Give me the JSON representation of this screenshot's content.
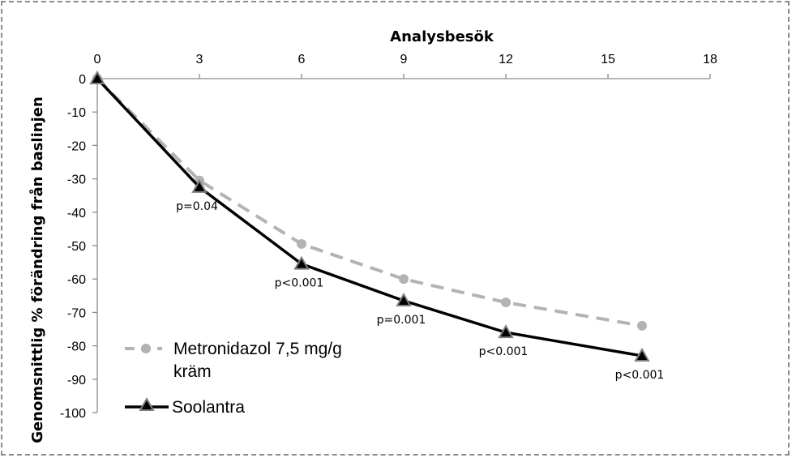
{
  "chart_data": {
    "type": "line",
    "title": "",
    "xlabel": "Analysbesök",
    "ylabel": "Genomsnittlig % förändring från baslinjen",
    "xlim": [
      0,
      18
    ],
    "ylim": [
      -100,
      0
    ],
    "x_ticks": [
      0,
      3,
      6,
      9,
      12,
      15,
      18
    ],
    "y_ticks": [
      0,
      -10,
      -20,
      -30,
      -40,
      -50,
      -60,
      -70,
      -80,
      -90,
      -100
    ],
    "x_axis_position": "top",
    "grid": false,
    "legend_position": "bottom-left",
    "series": [
      {
        "name": "Metronidazol 7,5 mg/g kräm",
        "legend_lines": [
          "Metronidazol 7,5 mg/g",
          "kräm"
        ],
        "x": [
          0,
          3,
          6,
          9,
          12,
          16
        ],
        "values": [
          0,
          -30.5,
          -49.5,
          -60,
          -67,
          -74
        ],
        "color": "#b3b3b3",
        "line_style": "dashed",
        "marker": "circle"
      },
      {
        "name": "Soolantra",
        "legend_lines": [
          "Soolantra"
        ],
        "x": [
          0,
          3,
          6,
          9,
          12,
          16
        ],
        "values": [
          0,
          -32.5,
          -55.5,
          -66.5,
          -76,
          -83
        ],
        "color": "#000000",
        "line_style": "solid",
        "marker": "triangle"
      }
    ],
    "annotations": [
      {
        "x": 3,
        "y": -32.5,
        "text": "p=0.04"
      },
      {
        "x": 6,
        "y": -55.5,
        "text": "p<0.001"
      },
      {
        "x": 9,
        "y": -66.5,
        "text": "p=0.001"
      },
      {
        "x": 12,
        "y": -76,
        "text": "p<0.001"
      },
      {
        "x": 16,
        "y": -83,
        "text": "p<0.001"
      }
    ]
  }
}
